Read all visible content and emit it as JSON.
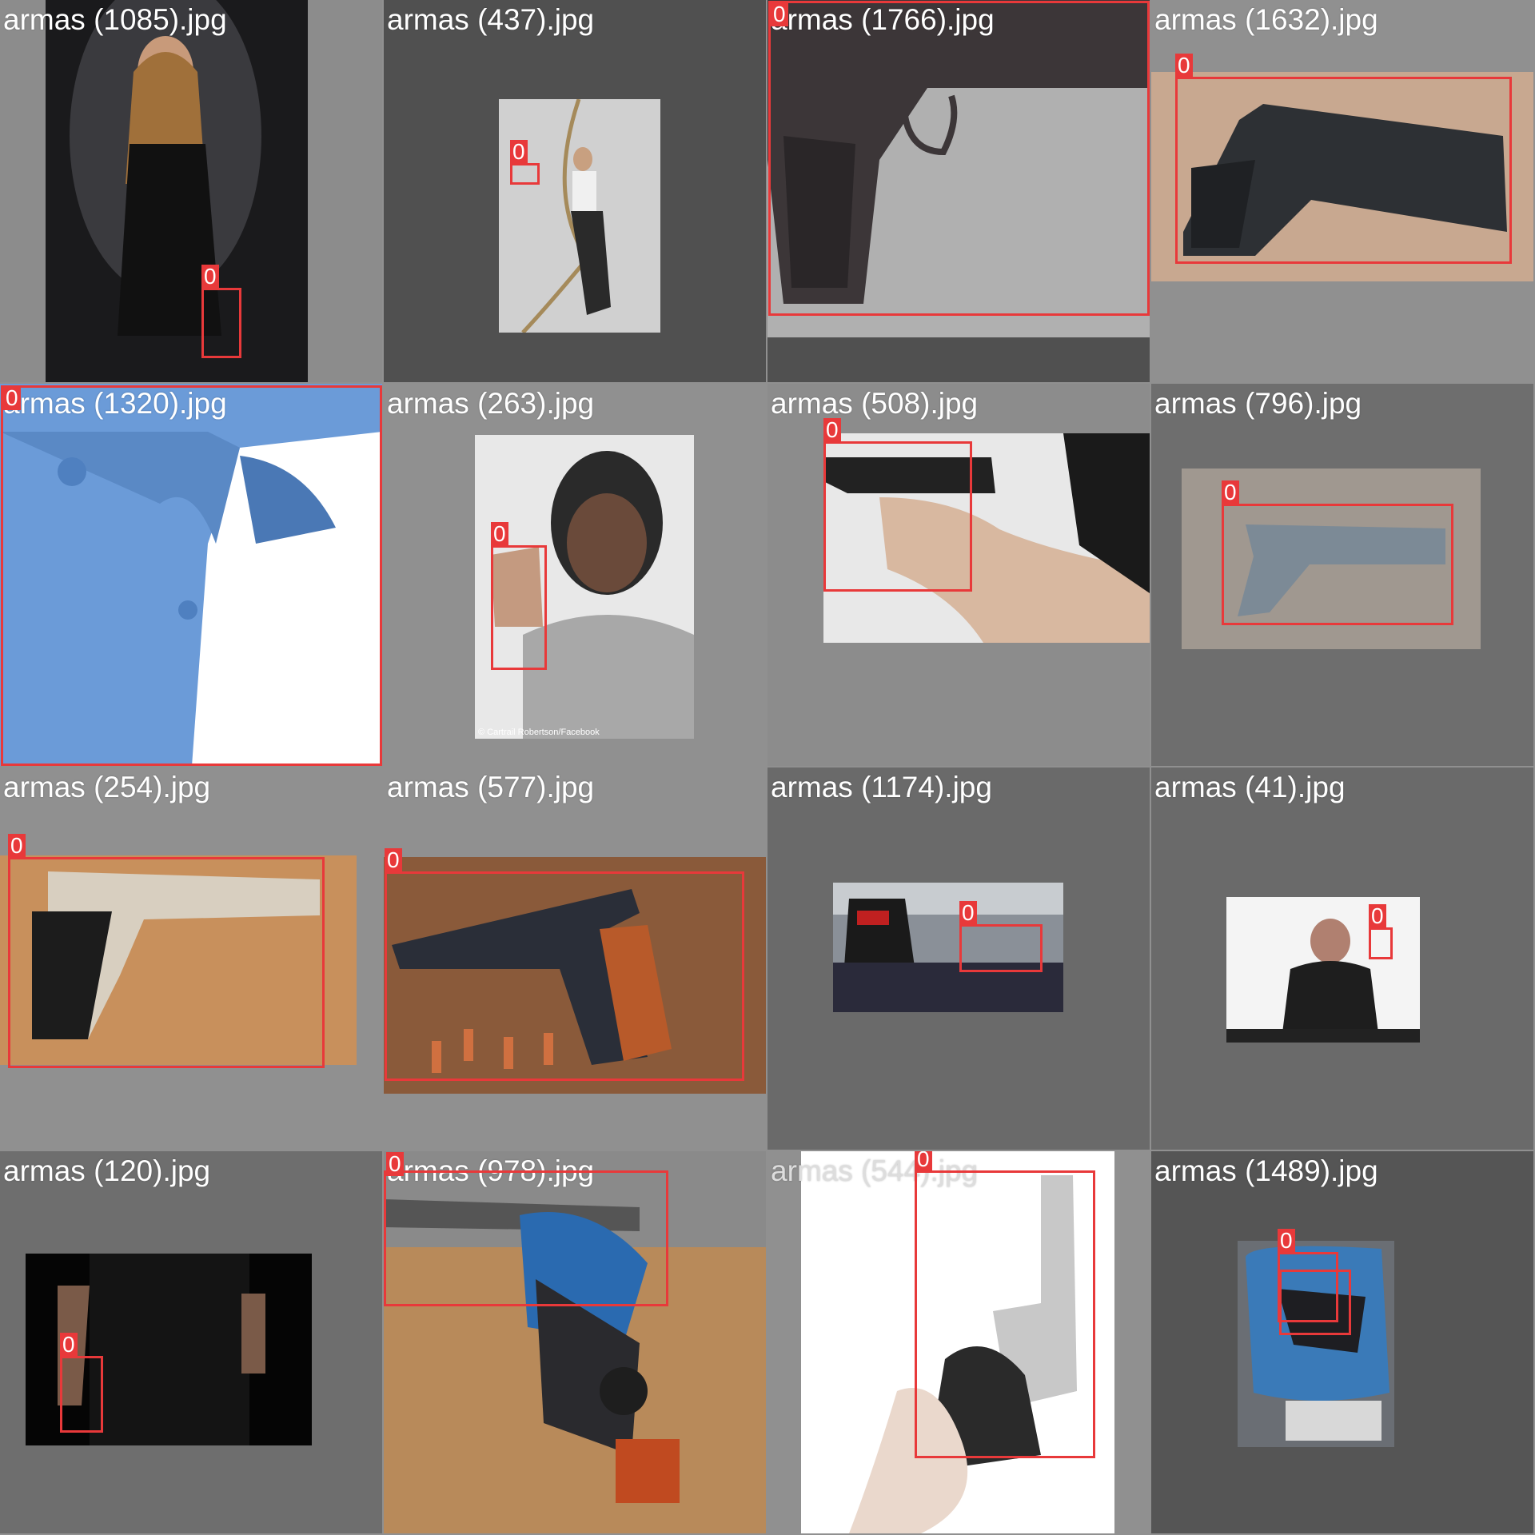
{
  "colors": {
    "box": "#e8393a",
    "label_text": "#ffffff"
  },
  "tiles": [
    {
      "filename": "armas (1085).jpg",
      "boxes": [
        {
          "label": "0"
        }
      ]
    },
    {
      "filename": "armas (437).jpg",
      "boxes": [
        {
          "label": "0"
        }
      ]
    },
    {
      "filename": "armas (1766).jpg",
      "boxes": [
        {
          "label": "0"
        }
      ]
    },
    {
      "filename": "armas (1632).jpg",
      "boxes": [
        {
          "label": "0"
        }
      ]
    },
    {
      "filename": "armas (1320).jpg",
      "boxes": [
        {
          "label": "0"
        }
      ]
    },
    {
      "filename": "armas (263).jpg",
      "boxes": [
        {
          "label": "0"
        }
      ],
      "credit": "© Cartrail Robertson/Facebook"
    },
    {
      "filename": "armas (508).jpg",
      "boxes": [
        {
          "label": "0"
        }
      ]
    },
    {
      "filename": "armas (796).jpg",
      "boxes": [
        {
          "label": "0"
        }
      ]
    },
    {
      "filename": "armas (254).jpg",
      "boxes": [
        {
          "label": "0"
        }
      ]
    },
    {
      "filename": "armas (577).jpg",
      "boxes": [
        {
          "label": "0"
        }
      ]
    },
    {
      "filename": "armas (1174).jpg",
      "boxes": [
        {
          "label": "0"
        }
      ]
    },
    {
      "filename": "armas (41).jpg",
      "boxes": [
        {
          "label": "0"
        }
      ]
    },
    {
      "filename": "armas (120).jpg",
      "boxes": [
        {
          "label": "0"
        }
      ]
    },
    {
      "filename": "armas (978).jpg",
      "boxes": [
        {
          "label": "0"
        }
      ]
    },
    {
      "filename": "armas (544).jpg",
      "boxes": [
        {
          "label": "0"
        }
      ]
    },
    {
      "filename": "armas (1489).jpg",
      "boxes": [
        {
          "label": "0"
        },
        {
          "label": "0"
        }
      ]
    }
  ]
}
